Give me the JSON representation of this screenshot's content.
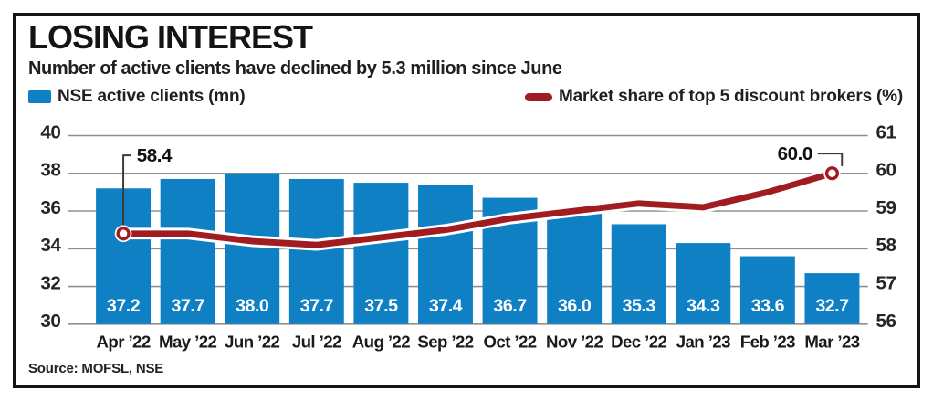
{
  "colors": {
    "bar": "#1080c5",
    "line": "#a01c20",
    "grid": "#8f8f8f",
    "leader": "#3a3a3a",
    "marker_fill": "#ffffff"
  },
  "chart_data": {
    "type": "bar+line",
    "title": "LOSING INTEREST",
    "subtitle": "Number of active clients have declined by 5.3 million since June",
    "source": "Source: MOFSL, NSE",
    "legend_position": "top",
    "grid": "horizontal",
    "categories": [
      "Apr ’22",
      "May ’22",
      "Jun ’22",
      "Jul ’22",
      "Aug ’22",
      "Sep ’22",
      "Oct ’22",
      "Nov ’22",
      "Dec ’22",
      "Jan ’23",
      "Feb ’23",
      "Mar ’23"
    ],
    "series": [
      {
        "name": "NSE active clients (mn)",
        "type": "bar",
        "axis": "left",
        "values": [
          37.2,
          37.7,
          38.0,
          37.7,
          37.5,
          37.4,
          36.7,
          36.0,
          35.3,
          34.3,
          33.6,
          32.7
        ]
      },
      {
        "name": "Market share of top 5 discount brokers (%)",
        "type": "line",
        "axis": "right",
        "values": [
          58.4,
          58.4,
          58.2,
          58.1,
          58.3,
          58.5,
          58.8,
          59.0,
          59.2,
          59.1,
          59.5,
          60.0
        ]
      }
    ],
    "left_axis": {
      "ticks": [
        40,
        38,
        36,
        34,
        32,
        30
      ],
      "range": [
        30,
        40
      ]
    },
    "right_axis": {
      "ticks": [
        61,
        60,
        59,
        58,
        57,
        56
      ],
      "range": [
        56,
        61
      ]
    },
    "annotations": [
      {
        "index": 0,
        "label": "58.4"
      },
      {
        "index": 11,
        "label": "60.0"
      }
    ]
  }
}
